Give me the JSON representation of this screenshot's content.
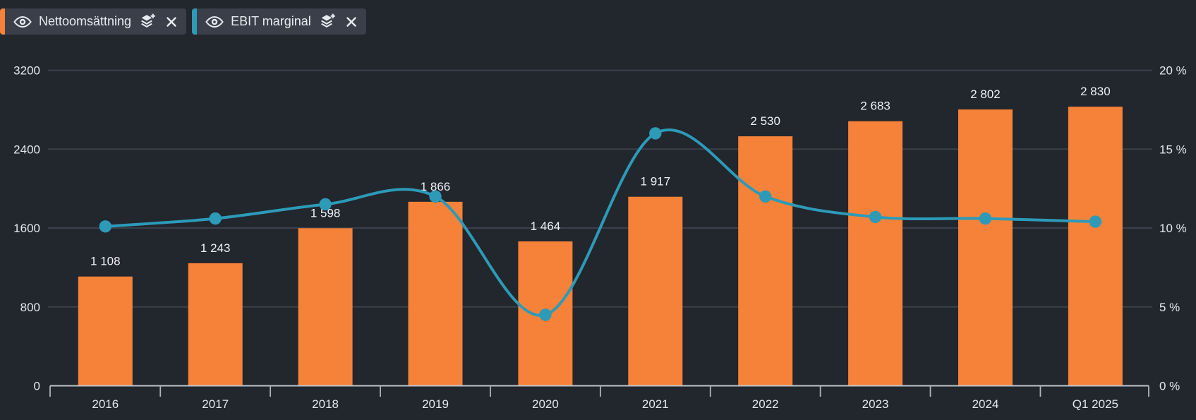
{
  "legend": {
    "items": [
      {
        "label": "Nettoomsättning",
        "color": "#f58238"
      },
      {
        "label": "EBIT marginal",
        "color": "#2d9ab8"
      }
    ]
  },
  "chart_data": {
    "type": "combo-bar-line",
    "categories": [
      "2016",
      "2017",
      "2018",
      "2019",
      "2020",
      "2021",
      "2022",
      "2023",
      "2024",
      "Q1 2025"
    ],
    "series": [
      {
        "name": "Nettoomsättning",
        "type": "bar",
        "axis": "left",
        "color": "#f58238",
        "values": [
          1108,
          1243,
          1598,
          1866,
          1464,
          1917,
          2530,
          2683,
          2802,
          2830
        ],
        "value_labels": [
          "1 108",
          "1 243",
          "1 598",
          "1 866",
          "1 464",
          "1 917",
          "2 530",
          "2 683",
          "2 802",
          "2 830"
        ]
      },
      {
        "name": "EBIT marginal",
        "type": "line",
        "axis": "right",
        "color": "#2d9ab8",
        "values": [
          10.1,
          10.6,
          11.5,
          12.0,
          4.5,
          16.0,
          12.0,
          10.7,
          10.6,
          10.4
        ]
      }
    ],
    "left_axis": {
      "ticks": [
        "0",
        "800",
        "1600",
        "2400",
        "3200"
      ],
      "tick_values": [
        0,
        800,
        1600,
        2400,
        3200
      ],
      "range": [
        0,
        3200
      ]
    },
    "right_axis": {
      "ticks": [
        "0 %",
        "5 %",
        "10 %",
        "15 %",
        "20 %"
      ],
      "tick_values": [
        0,
        5,
        10,
        15,
        20
      ],
      "range": [
        0,
        20
      ]
    },
    "grid": true,
    "legend_position": "top-left"
  },
  "colors": {
    "background": "#22262d",
    "gridline": "#3a404b",
    "axis_line": "#bfc3c9",
    "tick_mark": "#b0b4bb",
    "axis_text": "#e4e7eb",
    "value_text": "#f0f2f5",
    "chip_background": "#3a3f4a",
    "chip_text": "#e7eaee"
  }
}
